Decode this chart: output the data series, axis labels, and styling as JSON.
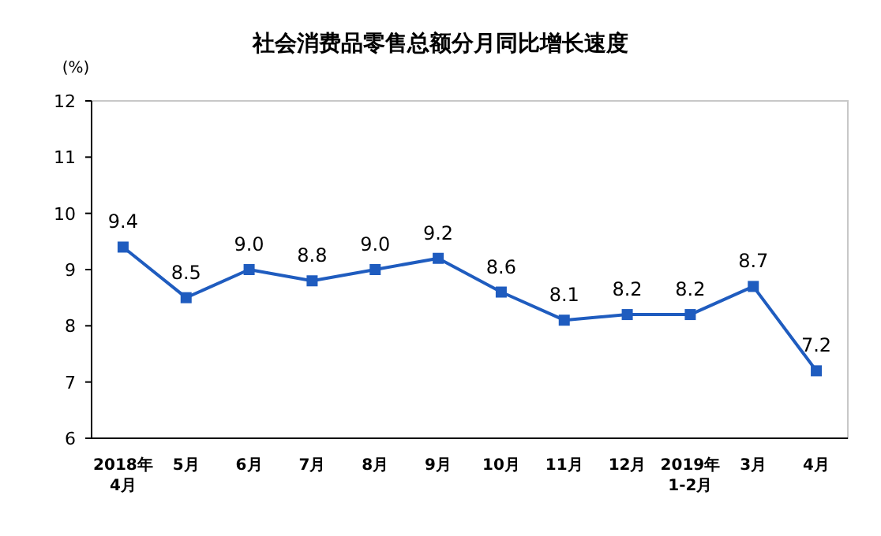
{
  "chart_data": {
    "type": "line",
    "title": "社会消费品零售总额分月同比增长速度",
    "ylabel": "(%)",
    "categories": [
      "2018年\n4月",
      "5月",
      "6月",
      "7月",
      "8月",
      "9月",
      "10月",
      "11月",
      "12月",
      "2019年\n1-2月",
      "3月",
      "4月"
    ],
    "series": [
      {
        "color": "#1f5cbf",
        "values": [
          9.4,
          8.5,
          9.0,
          8.8,
          9.0,
          9.2,
          8.6,
          8.1,
          8.2,
          8.2,
          8.7,
          7.2
        ],
        "value_labels": [
          "9.4",
          "8.5",
          "9.0",
          "8.8",
          "9.0",
          "9.2",
          "8.6",
          "8.1",
          "8.2",
          "8.2",
          "8.7",
          "7.2"
        ]
      }
    ],
    "ylim": [
      6,
      12
    ],
    "yticks": [
      6,
      7,
      8,
      9,
      10,
      11,
      12
    ],
    "marker": "square",
    "line_style": "solid",
    "grid": false
  }
}
